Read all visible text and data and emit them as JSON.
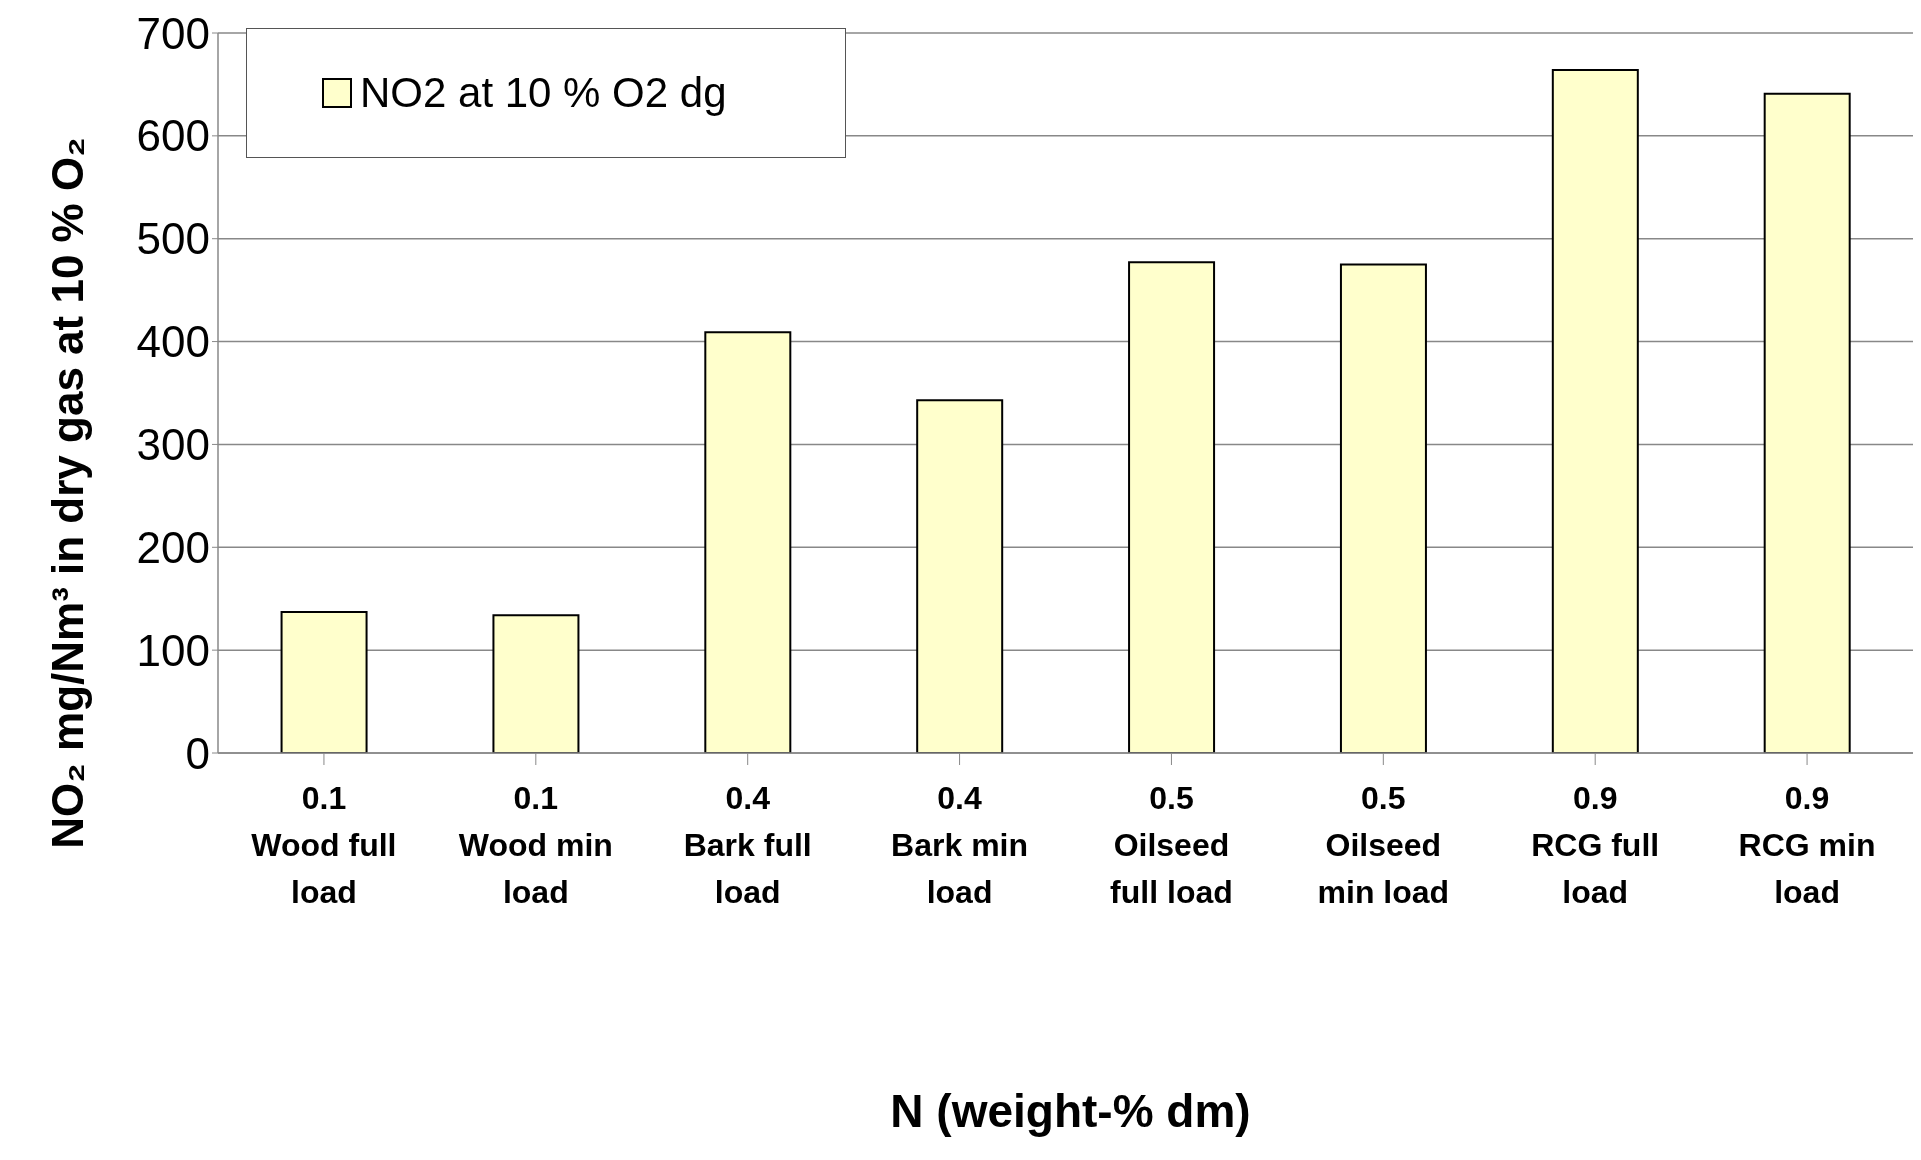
{
  "chart_data": {
    "type": "bar",
    "xlabel": "N (weight-% dm)",
    "ylabel": "NO₂ mg/Nm³ in dry gas at 10 % O₂",
    "categories": [
      "0.1 Wood full load",
      "0.1 Wood min load",
      "0.4 Bark full load",
      "0.4 Bark min load",
      "0.5 Oilseed full load",
      "0.5 Oilseed min load",
      "0.9 RCG full load",
      "0.9 RCG min load"
    ],
    "series": [
      {
        "name": "NO2 at 10 % O2 dg",
        "color": "#ffffcc",
        "values": [
          137,
          134,
          409,
          343,
          477,
          475,
          664,
          641
        ]
      }
    ],
    "ylim": [
      0,
      700
    ],
    "yticks": [
      0,
      100,
      200,
      300,
      400,
      500,
      600,
      700
    ],
    "grid": "y",
    "legend": "top left"
  }
}
